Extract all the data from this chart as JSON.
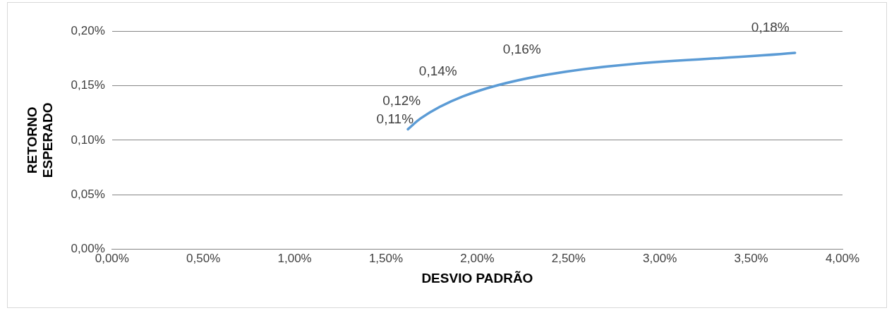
{
  "chart_data": {
    "type": "line",
    "xlabel": "DESVIO PADRÃO",
    "ylabel": "RETORNO ESPERADO",
    "series": [
      {
        "color": "#5b9bd5",
        "x": [
          1.62,
          1.69,
          1.92,
          2.38,
          3.74
        ],
        "values": [
          0.11,
          0.12,
          0.14,
          0.16,
          0.18
        ],
        "value_labels": [
          "0,11%",
          "0,12%",
          "0,14%",
          "0,16%",
          "0,18%"
        ]
      }
    ],
    "xlim": [
      0,
      4
    ],
    "xticks": [
      {
        "value": 0,
        "label": "0,00%"
      },
      {
        "value": 0.5,
        "label": "0,50%"
      },
      {
        "value": 1,
        "label": "1,00%"
      },
      {
        "value": 1.5,
        "label": "1,50%"
      },
      {
        "value": 2,
        "label": "2,00%"
      },
      {
        "value": 2.5,
        "label": "2,50%"
      },
      {
        "value": 3,
        "label": "3,00%"
      },
      {
        "value": 3.5,
        "label": "3,50%"
      },
      {
        "value": 4,
        "label": "4,00%"
      }
    ],
    "ylim": [
      0,
      0.2
    ],
    "yticks": [
      {
        "value": 0,
        "label": "0,00%"
      },
      {
        "value": 0.05,
        "label": "0,05%"
      },
      {
        "value": 0.1,
        "label": "0,10%"
      },
      {
        "value": 0.15,
        "label": "0,15%"
      },
      {
        "value": 0.2,
        "label": "0,20%"
      }
    ],
    "grid": "y",
    "legend": false,
    "marker": "none",
    "line_style": "solid"
  }
}
